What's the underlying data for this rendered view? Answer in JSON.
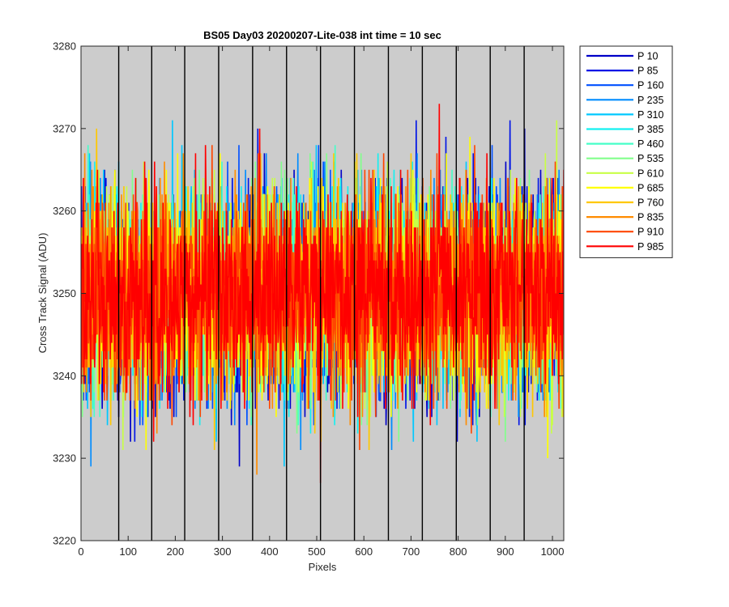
{
  "chart_data": {
    "type": "line",
    "title": "BS05 Day03 20200207-Lite-038 int time = 10 sec",
    "xlabel": "Pixels",
    "ylabel": "Cross Track Signal (ADU)",
    "xlim": [
      0,
      1024
    ],
    "ylim": [
      3220,
      3280
    ],
    "xticks": [
      0,
      100,
      200,
      300,
      400,
      500,
      600,
      700,
      800,
      900,
      1000
    ],
    "yticks": [
      3220,
      3230,
      3240,
      3250,
      3260,
      3270,
      3280
    ],
    "grid": false,
    "background": "#cccccc",
    "vertical_lines_x": [
      80,
      150,
      220,
      292,
      364,
      436,
      508,
      580,
      652,
      724,
      796,
      868,
      940
    ],
    "legend_position": "outside-top-right",
    "series_center": 3250,
    "series_spread_sd": 6,
    "series": [
      {
        "name": "P 10",
        "color": "#0000c8"
      },
      {
        "name": "P 85",
        "color": "#0014e6"
      },
      {
        "name": "P 160",
        "color": "#0050ff"
      },
      {
        "name": "P 235",
        "color": "#008cff"
      },
      {
        "name": "P 310",
        "color": "#00c8ff"
      },
      {
        "name": "P 385",
        "color": "#14f0f0"
      },
      {
        "name": "P 460",
        "color": "#46ffc8"
      },
      {
        "name": "P 535",
        "color": "#82ff8c"
      },
      {
        "name": "P 610",
        "color": "#c8ff46"
      },
      {
        "name": "P 685",
        "color": "#ffff00"
      },
      {
        "name": "P 760",
        "color": "#ffc800"
      },
      {
        "name": "P 835",
        "color": "#ff8c00"
      },
      {
        "name": "P 910",
        "color": "#ff4600"
      },
      {
        "name": "P 985",
        "color": "#ff0000"
      }
    ]
  }
}
